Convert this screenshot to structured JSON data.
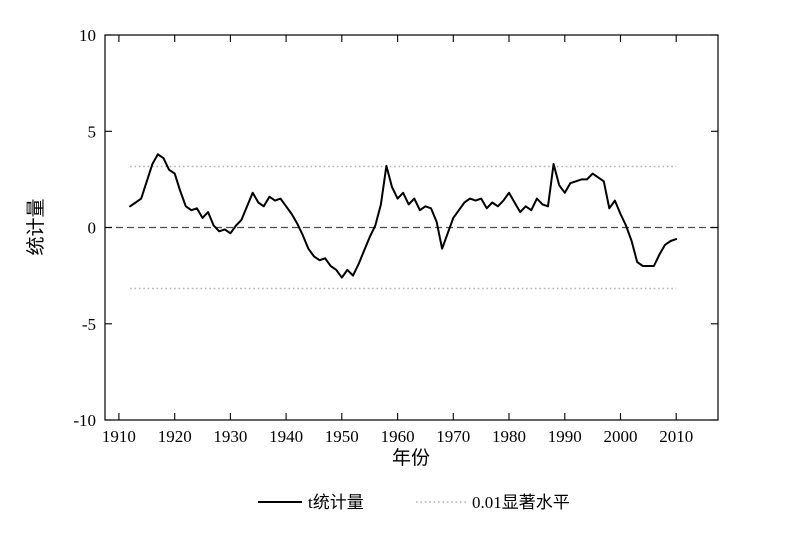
{
  "figure": {
    "background": "#ffffff"
  },
  "chart_data": {
    "type": "line",
    "title": "",
    "xlabel": "年份",
    "ylabel": "统计量",
    "xlim": [
      1907.5,
      2017.5
    ],
    "ylim": [
      -10,
      10
    ],
    "xticks": [
      1910,
      1920,
      1930,
      1940,
      1950,
      1960,
      1970,
      1980,
      1990,
      2000,
      2010
    ],
    "yticks": [
      -10,
      -5,
      0,
      5,
      10
    ],
    "grid": false,
    "legend_position": "bottom-center",
    "significance_level": 0.01,
    "critical_value": 3.17,
    "series": [
      {
        "name": "t统计量",
        "style": "solid",
        "color": "#000000",
        "x": [
          1912,
          1913,
          1914,
          1915,
          1916,
          1917,
          1918,
          1919,
          1920,
          1921,
          1922,
          1923,
          1924,
          1925,
          1926,
          1927,
          1928,
          1929,
          1930,
          1931,
          1932,
          1933,
          1934,
          1935,
          1936,
          1937,
          1938,
          1939,
          1940,
          1941,
          1942,
          1943,
          1944,
          1945,
          1946,
          1947,
          1948,
          1949,
          1950,
          1951,
          1952,
          1953,
          1954,
          1955,
          1956,
          1957,
          1958,
          1959,
          1960,
          1961,
          1962,
          1963,
          1964,
          1965,
          1966,
          1967,
          1968,
          1969,
          1970,
          1971,
          1972,
          1973,
          1974,
          1975,
          1976,
          1977,
          1978,
          1979,
          1980,
          1981,
          1982,
          1983,
          1984,
          1985,
          1986,
          1987,
          1988,
          1989,
          1990,
          1991,
          1992,
          1993,
          1994,
          1995,
          1996,
          1997,
          1998,
          1999,
          2000,
          2001,
          2002,
          2003,
          2004,
          2005,
          2006,
          2007,
          2008,
          2009,
          2010
        ],
        "y": [
          1.1,
          1.3,
          1.5,
          2.4,
          3.3,
          3.8,
          3.6,
          3.0,
          2.8,
          1.9,
          1.1,
          0.9,
          1.0,
          0.5,
          0.8,
          0.1,
          -0.2,
          -0.1,
          -0.3,
          0.1,
          0.4,
          1.1,
          1.8,
          1.3,
          1.1,
          1.6,
          1.4,
          1.5,
          1.1,
          0.7,
          0.2,
          -0.4,
          -1.1,
          -1.5,
          -1.7,
          -1.6,
          -2.0,
          -2.2,
          -2.6,
          -2.2,
          -2.5,
          -1.9,
          -1.2,
          -0.5,
          0.1,
          1.2,
          3.2,
          2.1,
          1.5,
          1.8,
          1.2,
          1.5,
          0.9,
          1.1,
          1.0,
          0.3,
          -1.1,
          -0.3,
          0.5,
          0.9,
          1.3,
          1.5,
          1.4,
          1.5,
          1.0,
          1.3,
          1.1,
          1.4,
          1.8,
          1.3,
          0.8,
          1.1,
          0.9,
          1.5,
          1.2,
          1.1,
          3.3,
          2.2,
          1.8,
          2.3,
          2.4,
          2.5,
          2.5,
          2.8,
          2.6,
          2.4,
          1.0,
          1.4,
          0.7,
          0.1,
          -0.7,
          -1.8,
          -2.0,
          -2.0,
          -2.0,
          -1.4,
          -0.9,
          -0.7,
          -0.6
        ]
      }
    ],
    "reference_lines": [
      {
        "label": "zero-line",
        "value": 0,
        "style": "dashed",
        "color": "#4d4d4d",
        "span": "full"
      },
      {
        "label": "0.01显著水平",
        "value": 3.17,
        "style": "dotted",
        "color": "#b3b3b3",
        "span": "data"
      },
      {
        "label": "0.01显著水平",
        "value": -3.17,
        "style": "dotted",
        "color": "#b3b3b3",
        "span": "data"
      }
    ],
    "legend": [
      {
        "label": "t统计量",
        "style": "solid",
        "color": "#000000"
      },
      {
        "label": "0.01显著水平",
        "style": "dotted",
        "color": "#b3b3b3"
      }
    ]
  }
}
